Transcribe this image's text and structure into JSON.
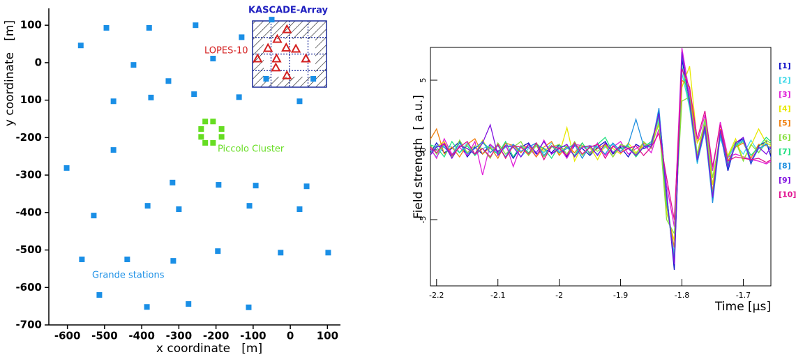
{
  "chart_data": [
    {
      "type": "scatter",
      "x_label": "x coordinate   [m]",
      "y_label": "y coordinate   [m]",
      "annotations": [
        "KASCADE-Array"
      ],
      "xlim": [
        -650,
        135
      ],
      "ylim": [
        -700,
        145
      ],
      "xticks": [
        -600,
        -500,
        -400,
        -300,
        -200,
        -100,
        0,
        100
      ],
      "yticks": [
        100,
        0,
        {
          "value": -100,
          "label": "100"
        },
        -200,
        -300,
        -400,
        -500,
        -600,
        -700
      ],
      "series": [
        {
          "name": "Grande stations",
          "color": "#1a8fe6",
          "marker": "square",
          "x": [
            -564,
            -495,
            -380,
            -255,
            -131,
            -50,
            -422,
            -208,
            -328,
            -259,
            -138,
            -375,
            -476,
            25,
            -476,
            -602,
            -317,
            -193,
            -93,
            44,
            -384,
            -300,
            -110,
            25,
            -529,
            -561,
            -439,
            -315,
            -195,
            -26,
            102,
            -514,
            -386,
            -274,
            -112,
            -65,
            62
          ],
          "values": [
            46,
            93,
            93,
            100,
            68,
            115,
            -6,
            11,
            -49,
            -84,
            -92,
            -93,
            -103,
            -103,
            -233,
            -281,
            -320,
            -326,
            -328,
            -330,
            -382,
            -391,
            -382,
            -391,
            -408,
            -525,
            -525,
            -529,
            -503,
            -507,
            -507,
            -620,
            -652,
            -644,
            -653,
            -43,
            -43
          ]
        },
        {
          "name": "Piccolo Cluster",
          "color": "#66dd22",
          "marker": "square",
          "x": [
            -229,
            -208,
            -240,
            -185,
            -240,
            -185,
            -229,
            -208
          ],
          "values": [
            -157,
            -157,
            -177,
            -177,
            -198,
            -198,
            -214,
            -214
          ]
        },
        {
          "name": "LOPES-10",
          "color": "#d42020",
          "marker": "triangle",
          "x": [
            -9,
            -60,
            -35,
            -11,
            15,
            -88,
            -37,
            42,
            -39,
            -9
          ],
          "values": [
            89,
            39,
            63,
            40,
            37,
            11,
            11,
            11,
            -13,
            -34
          ]
        }
      ]
    },
    {
      "type": "line",
      "x_label": "Time [µs]",
      "y_label": "Field strength  [ a.u.]",
      "xlim": [
        -2.21,
        -1.655
      ],
      "ylim": [
        -9.75,
        7.35
      ],
      "xticks": [
        -2.2,
        -2.1,
        -2,
        -1.9,
        -1.8,
        -1.7
      ],
      "yticks": [
        -5,
        0,
        5
      ],
      "x": [
        -2.2375,
        -2.225,
        -2.2125,
        -2.2,
        -2.1875,
        -2.175,
        -2.1625,
        -2.15,
        -2.1375,
        -2.125,
        -2.1125,
        -2.1,
        -2.0875,
        -2.075,
        -2.0625,
        -2.05,
        -2.0375,
        -2.025,
        -2.0125,
        -2,
        -1.9875,
        -1.975,
        -1.9625,
        -1.95,
        -1.9375,
        -1.925,
        -1.9125,
        -1.9,
        -1.8875,
        -1.875,
        -1.8625,
        -1.85,
        -1.8375,
        -1.825,
        -1.8125,
        -1.8,
        -1.7875,
        -1.775,
        -1.7625,
        -1.75,
        -1.7375,
        -1.725,
        -1.7125,
        -1.7,
        -1.6875,
        -1.675,
        -1.6625,
        -1.65
      ],
      "series": [
        {
          "name": "[1]",
          "color": "#1010c8",
          "values": [
            0.2,
            0.3,
            -0.4,
            0.5,
            -0.2,
            0.1,
            0.6,
            -0.5,
            0.2,
            -0.3,
            0.4,
            -0.1,
            0.3,
            -0.6,
            0.2,
            0.5,
            -0.3,
            0.1,
            -0.2,
            0.4,
            -0.5,
            0.3,
            0.1,
            -0.4,
            0.2,
            0.6,
            -0.3,
            0.2,
            -0.5,
            0.4,
            0.1,
            0.3,
            2.8,
            -3,
            -8.6,
            6.5,
            3.5,
            -0.8,
            1.5,
            -3.5,
            1.2,
            -1.5,
            0.5,
            0.8,
            -1,
            0.3,
            0.6,
            -1.2
          ]
        },
        {
          "name": "[2]",
          "color": "#40d8e8",
          "values": [
            -0.3,
            0.4,
            0.1,
            -0.5,
            0.3,
            0.2,
            -0.2,
            0.5,
            -0.4,
            0.1,
            0.3,
            -0.3,
            0.2,
            0.4,
            -0.5,
            0.1,
            0.3,
            -0.2,
            0.5,
            -0.1,
            0.2,
            -0.4,
            0.3,
            0.1,
            -0.3,
            0.2,
            0.4,
            -0.2,
            0.1,
            -0.4,
            0.3,
            0.5,
            2.2,
            -3.5,
            -7.5,
            5.5,
            3,
            -1,
            2,
            -2.5,
            0.8,
            -0.6,
            0.4,
            -0.3,
            0.7,
            -0.2,
            0.5,
            0.2
          ]
        },
        {
          "name": "[3]",
          "color": "#e020d8",
          "values": [
            0.5,
            -0.2,
            0.3,
            -0.6,
            0.8,
            -0.3,
            0.2,
            -0.4,
            0.6,
            -1.8,
            0.4,
            -0.2,
            0.5,
            -1.2,
            0.3,
            0.2,
            -0.5,
            0.7,
            -0.3,
            0.2,
            -0.6,
            0.4,
            0.3,
            -0.2,
            0.5,
            -0.4,
            0.2,
            0.6,
            -0.3,
            0.1,
            0.4,
            -0.2,
            1.5,
            -2.5,
            -5.5,
            7.3,
            4,
            0.5,
            2.5,
            -1.5,
            2,
            -0.5,
            -0.3,
            -0.5,
            -0.7,
            -0.8,
            -1,
            -0.7
          ]
        },
        {
          "name": "[4]",
          "color": "#e8e800",
          "values": [
            -0.1,
            0.5,
            -0.4,
            0.2,
            0.6,
            -0.5,
            0.3,
            0.1,
            -0.3,
            0.7,
            -0.2,
            0.4,
            -0.6,
            0.3,
            0.2,
            -0.4,
            0.5,
            -0.1,
            0.3,
            -0.3,
            1.6,
            -0.8,
            0.3,
            0.2,
            -0.7,
            0.4,
            0.1,
            -0.3,
            0.5,
            -0.2,
            0.3,
            0.4,
            1.8,
            -4.5,
            -6.5,
            4.5,
            6,
            0.5,
            1.5,
            -2.5,
            1,
            -0.4,
            0.8,
            -0.7,
            0.3,
            1.5,
            0.5,
            0.2
          ]
        },
        {
          "name": "[5]",
          "color": "#f08010",
          "values": [
            0.3,
            -0.4,
            0.6,
            1.5,
            -0.3,
            0.2,
            -0.5,
            0.4,
            0.8,
            -0.3,
            0.2,
            -0.6,
            0.5,
            0.3,
            -0.2,
            0.4,
            -0.5,
            0.2,
            0.6,
            -0.4,
            0.3,
            -0.2,
            0.5,
            -0.3,
            0.1,
            0.4,
            -0.5,
            0.3,
            0.2,
            -0.3,
            0.5,
            0.2,
            2.5,
            -4,
            -7,
            5,
            4.5,
            -0.5,
            1.8,
            -3,
            1.5,
            -0.8,
            0.2,
            0.5,
            -0.6,
            0.4,
            0.3,
            0.1
          ]
        },
        {
          "name": "[6]",
          "color": "#88e040",
          "values": [
            -0.4,
            0.2,
            0.5,
            -0.3,
            0.4,
            -0.5,
            0.7,
            -0.2,
            0.3,
            0.1,
            -0.6,
            0.5,
            -0.3,
            0.2,
            0.6,
            -0.4,
            0.3,
            -0.5,
            0.2,
            0.4,
            -0.3,
            0.6,
            -0.4,
            0.2,
            -0.1,
            0.3,
            -0.5,
            0.4,
            0.2,
            -0.3,
            0.6,
            0.1,
            2,
            -5,
            -6,
            3.5,
            3.8,
            -0.3,
            2.2,
            -2,
            1,
            -0.5,
            0.6,
            -0.8,
            0.4,
            -0.2,
            0.7,
            0.3
          ]
        },
        {
          "name": "[7]",
          "color": "#20e080",
          "values": [
            0.1,
            -0.3,
            0.4,
            0.2,
            -0.5,
            0.6,
            -0.2,
            0.3,
            -0.4,
            0.5,
            0.1,
            -0.3,
            0.6,
            -0.5,
            0.3,
            -0.2,
            0.4,
            0.1,
            -0.6,
            0.3,
            0.2,
            -0.4,
            0.5,
            -0.3,
            0.4,
            0.9,
            -0.2,
            0.1,
            0.3,
            -0.5,
            0.2,
            0.6,
            2.4,
            -3.8,
            -7.8,
            6,
            3.2,
            -0.6,
            1.6,
            -3.2,
            1.3,
            -1,
            0.3,
            0.6,
            -0.4,
            0.2,
            0.9,
            0.4
          ]
        },
        {
          "name": "[8]",
          "color": "#2090e0",
          "values": [
            0.4,
            0.1,
            -0.5,
            0.3,
            0.2,
            -0.4,
            0.5,
            -0.3,
            0.1,
            0.6,
            -0.2,
            0.3,
            -0.5,
            0.4,
            -0.1,
            0.2,
            0.5,
            -0.4,
            0.3,
            -0.2,
            0.1,
            0.4,
            -0.6,
            0.3,
            0.2,
            -0.3,
            0.5,
            -0.1,
            0.4,
            2.2,
            0.3,
            0.2,
            3,
            -3.2,
            -8,
            6.8,
            3.6,
            -0.9,
            1.4,
            -3.8,
            1.1,
            -1.3,
            0.4,
            0.7,
            -0.9,
            0.1,
            0.4,
            -0.2
          ]
        },
        {
          "name": "[9]",
          "color": "#8010e0",
          "values": [
            -0.2,
            0.3,
            -0.5,
            0.2,
            0.4,
            -0.6,
            0.3,
            0.1,
            -0.3,
            0.5,
            1.8,
            -0.4,
            0.3,
            0.2,
            -0.5,
            0.4,
            -0.2,
            0.6,
            -0.3,
            0.1,
            0.4,
            -0.5,
            0.2,
            0.3,
            -0.4,
            0.5,
            -0.2,
            0.3,
            0.1,
            -0.4,
            0.2,
            0.4,
            2.6,
            -3.3,
            -8.2,
            7,
            3.4,
            -0.7,
            1.7,
            -3.4,
            1.4,
            -1.2,
            0.5,
            0.9,
            -0.8,
            0.2,
            -0.3,
            0.5
          ]
        },
        {
          "name": "[10]",
          "color": "#e01090",
          "values": [
            0.1,
            -0.5,
            0.3,
            -0.2,
            0.5,
            -0.4,
            0.2,
            0.6,
            -0.3,
            0.1,
            -0.5,
            0.4,
            -0.6,
            0.3,
            0.2,
            -0.3,
            0.5,
            -0.7,
            0.3,
            0.1,
            -0.4,
            0.5,
            -0.3,
            0.2,
            0.4,
            -0.6,
            0.3,
            -0.2,
            0.1,
            0.3,
            -0.4,
            0.2,
            1.2,
            -2,
            -5,
            5.8,
            4.5,
            0.8,
            2.8,
            -1.2,
            1.8,
            -0.8,
            -0.5,
            -0.6,
            -0.7,
            -0.6,
            -0.9,
            -0.6
          ]
        }
      ]
    }
  ]
}
